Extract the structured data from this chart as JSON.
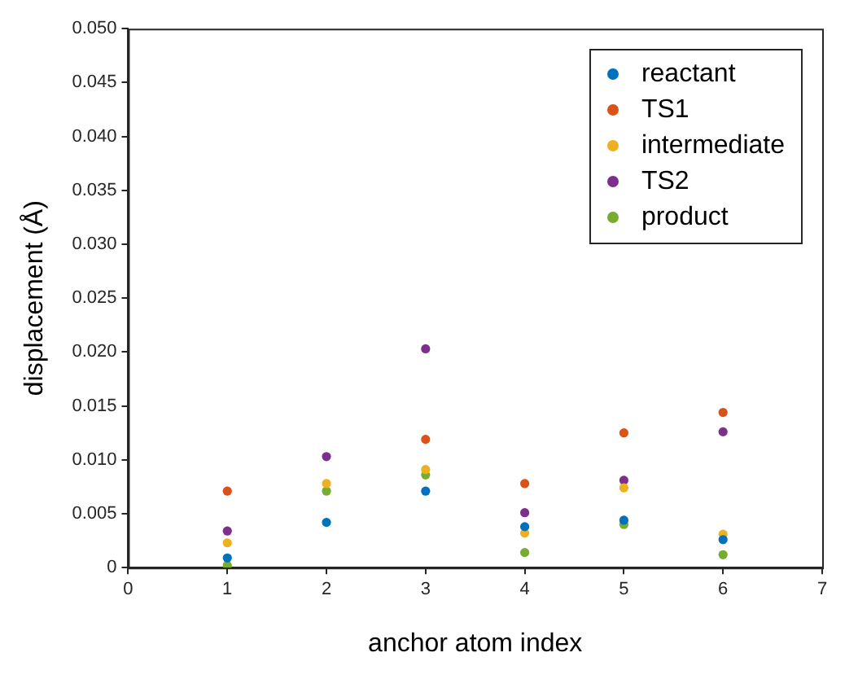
{
  "chart_data": {
    "type": "scatter",
    "xlabel": "anchor atom index",
    "ylabel": "displacement (Å)",
    "x": [
      1,
      2,
      3,
      4,
      5,
      6
    ],
    "xlim": [
      0,
      7
    ],
    "xticks": [
      0,
      1,
      2,
      3,
      4,
      5,
      6,
      7
    ],
    "ylim": [
      0,
      0.05
    ],
    "yticks": [
      0,
      0.005,
      {
        "value": 0.01,
        "label": "0.010"
      },
      0.015,
      {
        "value": 0.02,
        "label": "0.020"
      },
      0.025,
      {
        "value": 0.03,
        "label": "0.030"
      },
      0.035,
      {
        "value": 0.04,
        "label": "0.040"
      },
      0.045,
      {
        "value": 0.05,
        "label": "0.050"
      }
    ],
    "grid": false,
    "legend": "top right",
    "marker": "circle",
    "series": [
      {
        "name": "reactant",
        "color": "#0072bd",
        "values": [
          0.0009,
          0.0042,
          0.0071,
          0.0038,
          0.0044,
          0.0026
        ]
      },
      {
        "name": "TS1",
        "color": "#d95319",
        "values": [
          0.0071,
          null,
          0.0119,
          0.0078,
          0.0125,
          0.0144
        ]
      },
      {
        "name": "intermediate",
        "color": "#edb120",
        "values": [
          0.0023,
          0.0078,
          0.0091,
          0.0032,
          0.0074,
          0.0031
        ]
      },
      {
        "name": "TS2",
        "color": "#7e2f8e",
        "values": [
          0.0034,
          0.0103,
          0.0203,
          0.0051,
          0.0081,
          0.0126
        ]
      },
      {
        "name": "product",
        "color": "#77ac30",
        "values": [
          0.0002,
          0.0071,
          0.0086,
          0.0014,
          0.004,
          0.0012
        ]
      }
    ]
  }
}
